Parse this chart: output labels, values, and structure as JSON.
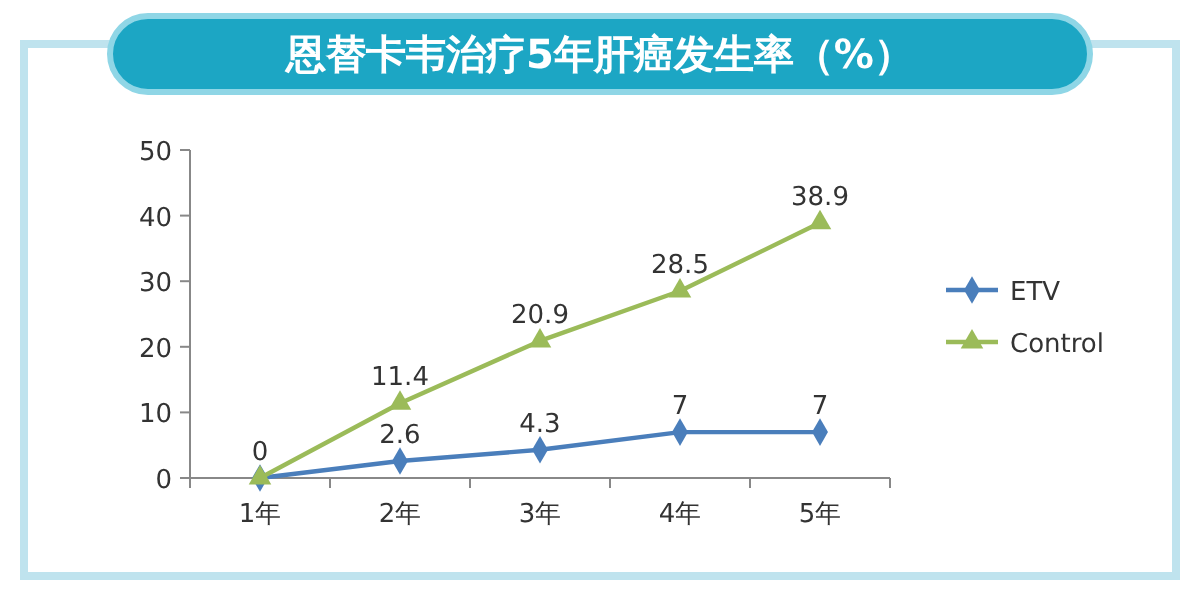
{
  "chart_data": {
    "type": "line",
    "title": "恩替卡韦治疗5年肝癌发生率（%）",
    "categories": [
      "1年",
      "2年",
      "3年",
      "4年",
      "5年"
    ],
    "series": [
      {
        "name": "ETV",
        "color": "#4a7ebb",
        "marker": "diamond",
        "values": [
          0,
          2.6,
          4.3,
          7,
          7
        ],
        "value_labels": [
          null,
          "2.6",
          "4.3",
          "7",
          "7"
        ]
      },
      {
        "name": "Control",
        "color": "#9bbb59",
        "marker": "triangle",
        "values": [
          0,
          11.4,
          20.9,
          28.5,
          38.9
        ],
        "value_labels": [
          "0",
          "11.4",
          "20.9",
          "28.5",
          "38.9"
        ]
      }
    ],
    "ylim": [
      0,
      50
    ],
    "yticks": [
      0,
      10,
      20,
      30,
      40,
      50
    ],
    "grid": false,
    "legend": "right"
  }
}
